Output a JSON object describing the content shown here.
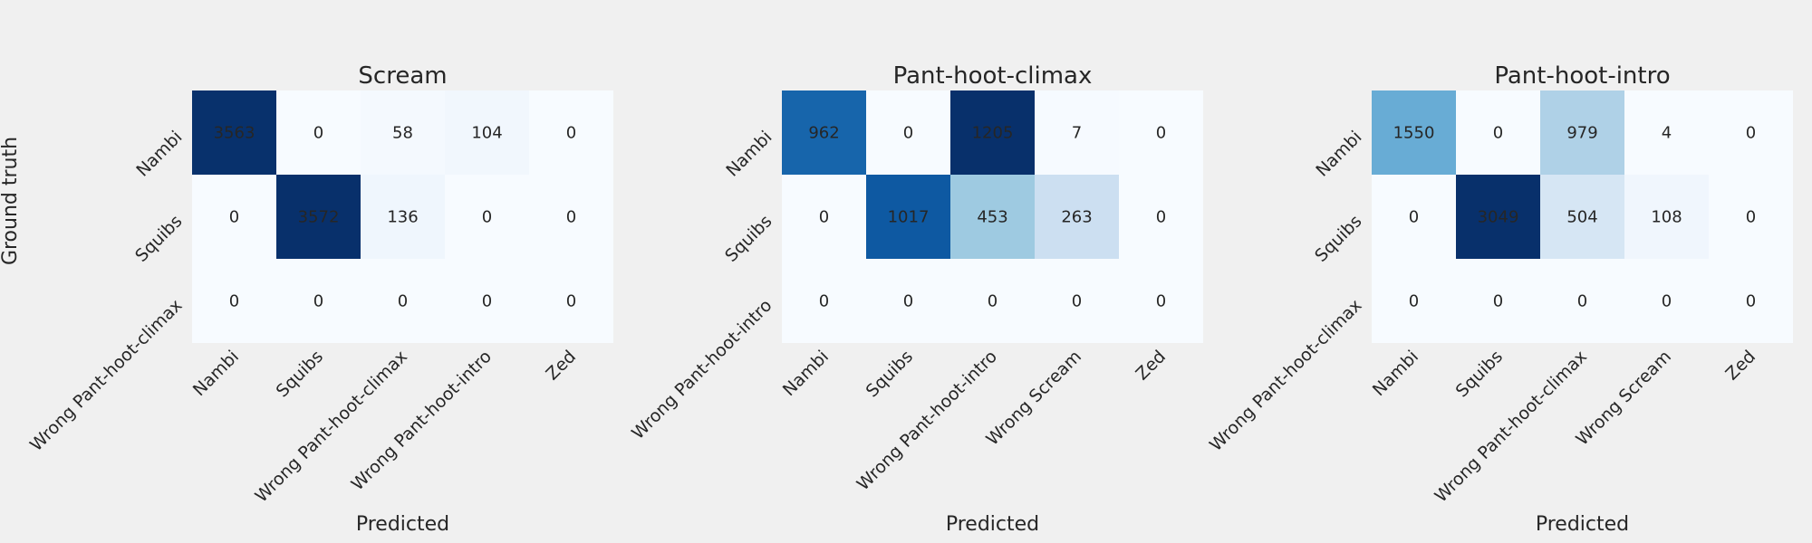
{
  "figure": {
    "ylabel": "Ground truth"
  },
  "colors": {
    "background": "#f0f0f0",
    "cmap": [
      "#f7fbff",
      "#deebf7",
      "#c6dbef",
      "#9ecae1",
      "#6baed6",
      "#4292c6",
      "#2171b5",
      "#08519c",
      "#08306b"
    ],
    "text_dark": "#262626",
    "text_light": "#ffffff"
  },
  "chart_data": [
    {
      "type": "heatmap",
      "title": "Scream",
      "xlabel": "Predicted",
      "ylabel": "Ground truth",
      "rows": [
        "Nambi",
        "Squibs",
        "Wrong Pant-hoot-climax"
      ],
      "columns": [
        "Nambi",
        "Squibs",
        "Wrong Pant-hoot-climax",
        "Wrong Pant-hoot-intro",
        "Zed"
      ],
      "values": [
        [
          3563,
          0,
          58,
          104,
          0
        ],
        [
          0,
          3572,
          136,
          0,
          0
        ],
        [
          0,
          0,
          0,
          0,
          0
        ]
      ],
      "colorbar": false
    },
    {
      "type": "heatmap",
      "title": "Pant-hoot-climax",
      "xlabel": "Predicted",
      "rows": [
        "Nambi",
        "Squibs",
        "Wrong Pant-hoot-intro"
      ],
      "columns": [
        "Nambi",
        "Squibs",
        "Wrong Pant-hoot-intro",
        "Wrong Scream",
        "Zed"
      ],
      "values": [
        [
          962,
          0,
          1205,
          7,
          0
        ],
        [
          0,
          1017,
          453,
          263,
          0
        ],
        [
          0,
          0,
          0,
          0,
          0
        ]
      ],
      "colorbar": false
    },
    {
      "type": "heatmap",
      "title": "Pant-hoot-intro",
      "xlabel": "Predicted",
      "rows": [
        "Nambi",
        "Squibs",
        "Wrong Pant-hoot-climax"
      ],
      "columns": [
        "Nambi",
        "Squibs",
        "Wrong Pant-hoot-climax",
        "Wrong Scream",
        "Zed"
      ],
      "values": [
        [
          1550,
          0,
          979,
          4,
          0
        ],
        [
          0,
          3049,
          504,
          108,
          0
        ],
        [
          0,
          0,
          0,
          0,
          0
        ]
      ],
      "colorbar": false
    }
  ]
}
